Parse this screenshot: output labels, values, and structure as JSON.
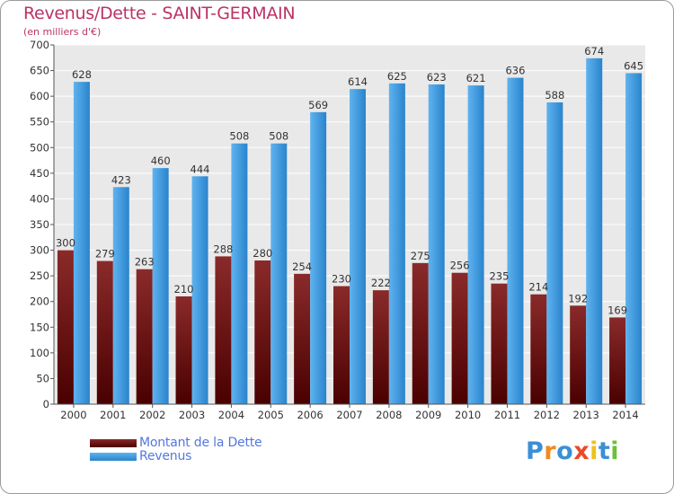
{
  "header": {
    "title": "Revenus/Dette - SAINT-GERMAIN",
    "subtitle": "(en milliers d'€)"
  },
  "legend": {
    "items": [
      {
        "label": "Montant de la Dette",
        "color": "#7a1c1c"
      },
      {
        "label": "Revenus",
        "color": "#3d9be3"
      }
    ]
  },
  "logo": {
    "text": "Proxiti"
  },
  "colors": {
    "debt_top": "#8a2a2a",
    "debt_bottom": "#4a0000",
    "rev_top": "#5fb3ef",
    "rev_bottom": "#2a84cc",
    "grid": "#ffffff",
    "plot_bg": "#e9e9e9"
  },
  "chart_data": {
    "type": "bar",
    "categories": [
      "2000",
      "2001",
      "2002",
      "2003",
      "2004",
      "2005",
      "2006",
      "2007",
      "2008",
      "2009",
      "2010",
      "2011",
      "2012",
      "2013",
      "2014"
    ],
    "series": [
      {
        "name": "Montant de la Dette",
        "values": [
          300,
          279,
          263,
          210,
          288,
          280,
          254,
          230,
          222,
          275,
          256,
          235,
          214,
          192,
          169
        ]
      },
      {
        "name": "Revenus",
        "values": [
          628,
          423,
          460,
          444,
          508,
          508,
          569,
          614,
          625,
          623,
          621,
          636,
          588,
          674,
          645
        ]
      }
    ],
    "ylim": [
      0,
      700
    ],
    "yticks": [
      0,
      50,
      100,
      150,
      200,
      250,
      300,
      350,
      400,
      450,
      500,
      550,
      600,
      650,
      700
    ],
    "grid": true,
    "legend_position": "bottom-left"
  }
}
